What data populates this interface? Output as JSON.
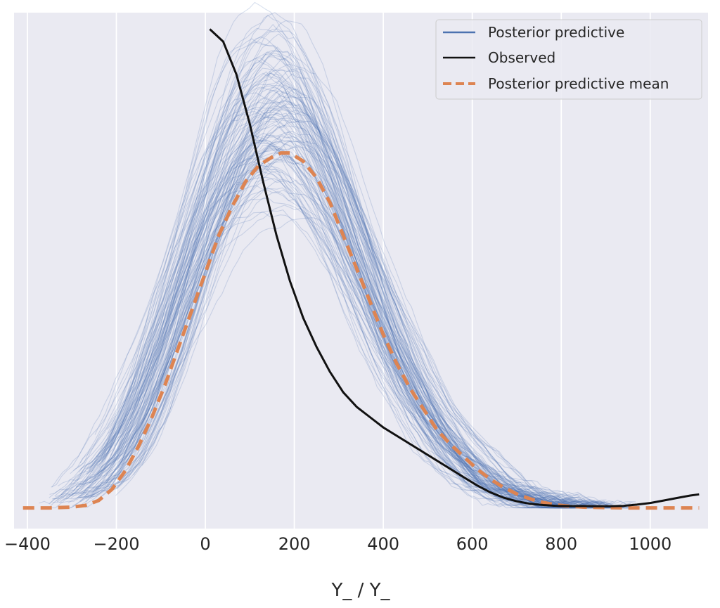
{
  "chart_data": {
    "type": "line",
    "title": "",
    "xlabel": "Y_ / Y_",
    "ylabel": "",
    "xlim": [
      -430,
      1130
    ],
    "ylim": [
      -5e-05,
      0.0012
    ],
    "x_ticks": [
      -400,
      -200,
      0,
      200,
      400,
      600,
      800,
      1000
    ],
    "x_tick_labels": [
      "−400",
      "−200",
      "0",
      "200",
      "400",
      "600",
      "800",
      "1000"
    ],
    "grid": "vertical",
    "legend_position": "top-right",
    "colors": {
      "background": "#eaeaf2",
      "grid": "#ffffff",
      "posterior_predictive": "#4c72b0",
      "observed": "#111111",
      "mean": "#dd8452"
    },
    "posterior_predictive_draw_count": 120,
    "series": [
      {
        "name": "Posterior predictive",
        "style": "thin-transparent",
        "x": [
          -350,
          -300,
          -250,
          -200,
          -150,
          -100,
          -50,
          0,
          50,
          100,
          150,
          200,
          250,
          300,
          350,
          400,
          450,
          500,
          550,
          600,
          650,
          700,
          750,
          800,
          850,
          900
        ],
        "y": [
          1e-05,
          3e-05,
          6e-05,
          0.00012,
          0.00022,
          0.00036,
          0.00052,
          0.00068,
          0.00082,
          0.00091,
          0.00095,
          0.00093,
          0.00085,
          0.00073,
          0.00059,
          0.00045,
          0.00033,
          0.00023,
          0.00015,
          9.5e-05,
          5.5e-05,
          3e-05,
          1.5e-05,
          7e-06,
          3e-06,
          1e-06
        ]
      },
      {
        "name": "Observed",
        "style": "solid",
        "x": [
          10,
          40,
          70,
          100,
          130,
          160,
          190,
          220,
          250,
          280,
          310,
          340,
          370,
          400,
          430,
          460,
          490,
          520,
          550,
          580,
          610,
          640,
          670,
          700,
          730,
          760,
          790,
          820,
          850,
          880,
          910,
          940,
          970,
          1000,
          1030,
          1060,
          1090,
          1110
        ],
        "y": [
          0.00116,
          0.00113,
          0.00105,
          0.00093,
          0.00079,
          0.00066,
          0.00055,
          0.00046,
          0.00039,
          0.00033,
          0.00028,
          0.000245,
          0.00022,
          0.000195,
          0.000175,
          0.000155,
          0.000135,
          0.000115,
          9.5e-05,
          7.5e-05,
          5.5e-05,
          3.8e-05,
          2.5e-05,
          1.6e-05,
          1e-05,
          7e-06,
          5e-06,
          4.5e-06,
          4.5e-06,
          4e-06,
          4e-06,
          5e-06,
          8e-06,
          1.2e-05,
          1.8e-05,
          2.4e-05,
          3e-05,
          3.3e-05
        ]
      },
      {
        "name": "Posterior predictive mean",
        "style": "dashed",
        "x": [
          -410,
          -350,
          -300,
          -270,
          -240,
          -210,
          -180,
          -150,
          -120,
          -90,
          -60,
          -30,
          0,
          30,
          60,
          90,
          120,
          150,
          170,
          190,
          220,
          250,
          280,
          310,
          340,
          370,
          400,
          430,
          460,
          490,
          520,
          550,
          580,
          610,
          640,
          670,
          700,
          730,
          760,
          790,
          820,
          850,
          900,
          950,
          1000,
          1110
        ],
        "y": [
          0.0,
          0.0,
          2e-06,
          6e-06,
          1.8e-05,
          4.5e-05,
          9e-05,
          0.00015,
          0.00022,
          0.0003,
          0.00039,
          0.00048,
          0.00057,
          0.00066,
          0.00073,
          0.00079,
          0.00083,
          0.00085,
          0.00086,
          0.00086,
          0.00084,
          0.0008,
          0.00074,
          0.00066,
          0.00058,
          0.0005,
          0.00042,
          0.00035,
          0.00029,
          0.00024,
          0.00019,
          0.000155,
          0.000125,
          9.5e-05,
          7e-05,
          5e-05,
          3.4e-05,
          2.2e-05,
          1.3e-05,
          7e-06,
          4e-06,
          2e-06,
          1e-06,
          0.0,
          0.0,
          0.0
        ]
      }
    ]
  }
}
